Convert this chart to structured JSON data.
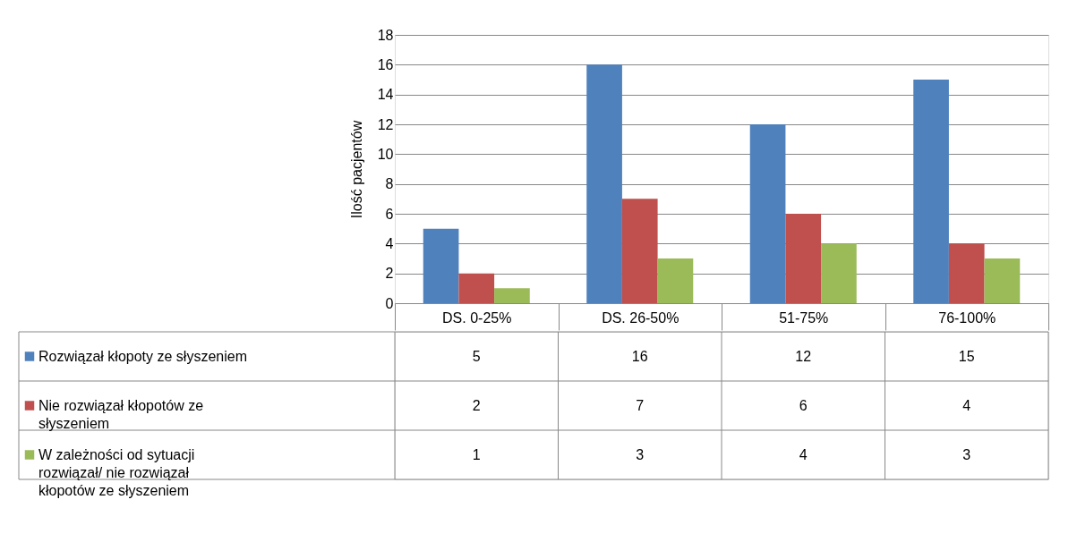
{
  "chart_data": {
    "type": "bar",
    "ylabel": "Ilość pacjentów",
    "categories": [
      "DS. 0-25%",
      "DS. 26-50%",
      "51-75%",
      "76-100%"
    ],
    "series": [
      {
        "name": "Rozwiązał kłopoty ze słyszeniem",
        "color": "#4f81bd",
        "values": [
          5,
          16,
          12,
          15
        ]
      },
      {
        "name": "Nie rozwiązał kłopotów ze słyszeniem",
        "color": "#c0504d",
        "values": [
          2,
          7,
          6,
          4
        ]
      },
      {
        "name": "W zależności od sytuacji rozwiązał/ nie rozwiązał kłopotów ze słyszeniem",
        "color": "#9bbb59",
        "values": [
          1,
          3,
          4,
          3
        ]
      }
    ],
    "ylim": [
      0,
      18
    ],
    "yticks": [
      0,
      2,
      4,
      6,
      8,
      10,
      12,
      14,
      16,
      18
    ],
    "grid": "y",
    "data_labels": true,
    "legend": "bottom"
  }
}
